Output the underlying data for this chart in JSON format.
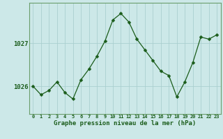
{
  "x": [
    0,
    1,
    2,
    3,
    4,
    5,
    6,
    7,
    8,
    9,
    10,
    11,
    12,
    13,
    14,
    15,
    16,
    17,
    18,
    19,
    20,
    21,
    22,
    23
  ],
  "y": [
    1026.0,
    1025.8,
    1025.9,
    1026.1,
    1025.85,
    1025.7,
    1026.15,
    1026.4,
    1026.7,
    1027.05,
    1027.55,
    1027.7,
    1027.5,
    1027.1,
    1026.85,
    1026.6,
    1026.35,
    1026.25,
    1025.75,
    1026.1,
    1026.55,
    1027.15,
    1027.1,
    1027.2
  ],
  "line_color": "#1a5c1a",
  "marker_color": "#1a5c1a",
  "bg_color": "#cce8e8",
  "grid_color": "#aacfcf",
  "label_color": "#1a5c1a",
  "border_color": "#6b9e6b",
  "xlabel": "Graphe pression niveau de la mer (hPa)",
  "ytick_labels": [
    "1026",
    "1027"
  ],
  "ytick_values": [
    1026,
    1027
  ],
  "ylim": [
    1025.35,
    1027.95
  ],
  "xlim": [
    -0.5,
    23.5
  ],
  "xtick_labels": [
    "0",
    "1",
    "2",
    "3",
    "4",
    "5",
    "6",
    "7",
    "8",
    "9",
    "10",
    "11",
    "12",
    "13",
    "14",
    "15",
    "16",
    "17",
    "18",
    "19",
    "20",
    "21",
    "22",
    "23"
  ]
}
